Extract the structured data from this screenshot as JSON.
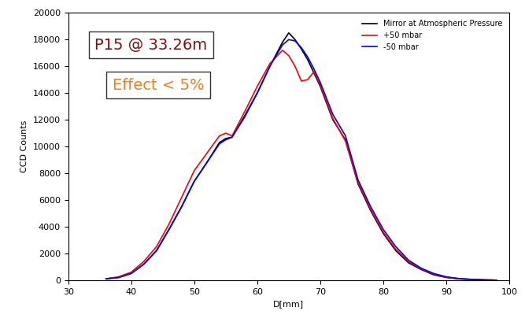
{
  "chart_data": {
    "type": "line",
    "x_label": "D[mm]",
    "y_label": "CCD Counts",
    "annotations": [
      "P15 @ 33.26m",
      "Effect < 5%"
    ],
    "x": [
      36,
      38,
      40,
      42,
      44,
      46,
      48,
      50,
      52,
      54,
      55,
      56,
      58,
      60,
      62,
      64,
      65,
      66,
      67,
      68,
      69,
      70,
      72,
      74,
      76,
      78,
      80,
      82,
      84,
      86,
      88,
      90,
      92,
      94,
      96,
      98
    ],
    "series": [
      {
        "name": "Mirror at Atmospheric Pressure",
        "color": "#000000",
        "values": [
          100,
          200,
          500,
          1200,
          2200,
          3800,
          5500,
          7400,
          8800,
          10300,
          10600,
          10700,
          12300,
          14000,
          16000,
          17800,
          18500,
          18000,
          17300,
          16500,
          15500,
          14500,
          12000,
          10500,
          7200,
          5200,
          3500,
          2200,
          1300,
          800,
          400,
          200,
          100,
          50,
          20,
          0
        ]
      },
      {
        "name": "+50 mbar",
        "color": "#ff0000",
        "values": [
          100,
          250,
          600,
          1400,
          2500,
          4200,
          6200,
          8200,
          9500,
          10800,
          11000,
          10800,
          12600,
          14500,
          16200,
          17200,
          16800,
          16000,
          14900,
          15000,
          15600,
          14600,
          12100,
          10400,
          7300,
          5300,
          3600,
          2300,
          1400,
          850,
          450,
          220,
          100,
          50,
          20,
          0
        ]
      },
      {
        "name": "-50 mbar",
        "color": "#0000ff",
        "values": [
          100,
          200,
          500,
          1200,
          2200,
          3800,
          5500,
          7400,
          8800,
          10200,
          10500,
          10700,
          12200,
          14000,
          16000,
          17600,
          18000,
          17900,
          17400,
          16700,
          15800,
          14800,
          12400,
          10800,
          7500,
          5500,
          3800,
          2500,
          1500,
          900,
          500,
          250,
          120,
          60,
          20,
          0
        ]
      }
    ],
    "xlim": [
      30,
      100
    ],
    "xticks": [
      30,
      40,
      50,
      60,
      70,
      80,
      90,
      100
    ],
    "ylim": [
      0,
      20000
    ],
    "yticks": [
      0,
      2000,
      4000,
      6000,
      8000,
      10000,
      12000,
      14000,
      16000,
      18000,
      20000
    ],
    "legend": "upper right",
    "grid": false
  }
}
